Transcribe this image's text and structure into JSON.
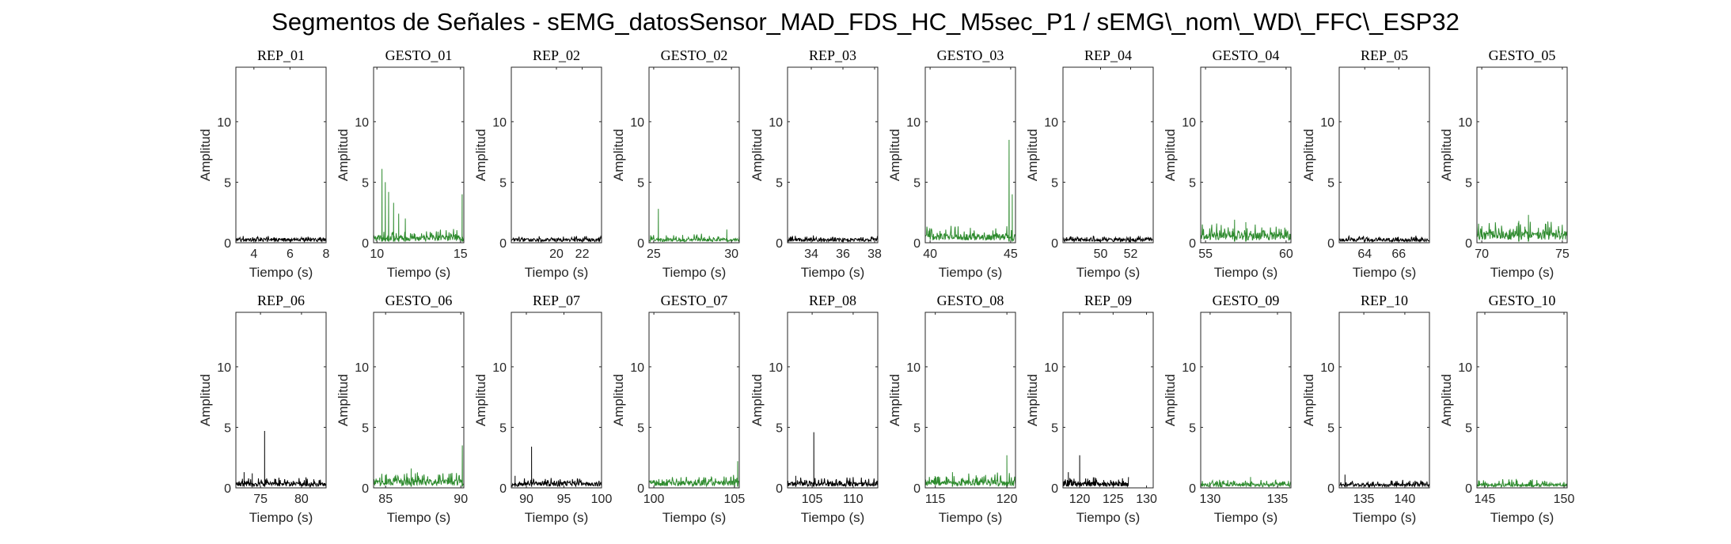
{
  "figure": {
    "title": "Segmentos de Señales - sEMG_datosSensor_MAD_FDS_HC_M5sec_P1 / sEMG\\_nom\\_WD\\_FFC\\_ESP32"
  },
  "colors": {
    "rep": "#000000",
    "gesto": "#2e8b2e",
    "axis": "#262626"
  },
  "chart_data": [
    {
      "type": "line",
      "title": "REP_01",
      "xlabel": "Tiempo (s)",
      "ylabel": "Amplitud",
      "xlim": [
        3,
        8
      ],
      "ylim": [
        0,
        14.5
      ],
      "xticks": [
        4,
        6,
        8
      ],
      "yticks": [
        0,
        5,
        10
      ],
      "color": "black",
      "baseline": 0.3,
      "noise": 0.25,
      "spikes": []
    },
    {
      "type": "line",
      "title": "GESTO_01",
      "xlabel": "Tiempo (s)",
      "ylabel": "Amplitud",
      "xlim": [
        9.8,
        15.2
      ],
      "ylim": [
        0,
        14.5
      ],
      "xticks": [
        10,
        15
      ],
      "yticks": [
        0,
        5,
        10
      ],
      "color": "green",
      "baseline": 0.5,
      "noise": 0.7,
      "spikes": [
        [
          10.3,
          6.1
        ],
        [
          10.5,
          5.0
        ],
        [
          10.7,
          4.2
        ],
        [
          11.0,
          3.3
        ],
        [
          11.3,
          2.4
        ],
        [
          11.7,
          2.0
        ],
        [
          15.1,
          4.0
        ]
      ]
    },
    {
      "type": "line",
      "title": "REP_02",
      "xlabel": "Tiempo (s)",
      "ylabel": "Amplitud",
      "xlim": [
        16.5,
        23.5
      ],
      "ylim": [
        0,
        14.5
      ],
      "xticks": [
        20,
        22
      ],
      "yticks": [
        0,
        5,
        10
      ],
      "color": "black",
      "baseline": 0.3,
      "noise": 0.25,
      "spikes": []
    },
    {
      "type": "line",
      "title": "GESTO_02",
      "xlabel": "Tiempo (s)",
      "ylabel": "Amplitud",
      "xlim": [
        24.7,
        30.5
      ],
      "ylim": [
        0,
        14.5
      ],
      "xticks": [
        25,
        30
      ],
      "yticks": [
        0,
        5,
        10
      ],
      "color": "green",
      "baseline": 0.3,
      "noise": 0.4,
      "spikes": [
        [
          25.3,
          2.8
        ],
        [
          29.7,
          1.1
        ]
      ]
    },
    {
      "type": "line",
      "title": "REP_03",
      "xlabel": "Tiempo (s)",
      "ylabel": "Amplitud",
      "xlim": [
        32.5,
        38.2
      ],
      "ylim": [
        0,
        14.5
      ],
      "xticks": [
        34,
        36,
        38
      ],
      "yticks": [
        0,
        5,
        10
      ],
      "color": "black",
      "baseline": 0.3,
      "noise": 0.25,
      "spikes": []
    },
    {
      "type": "line",
      "title": "GESTO_03",
      "xlabel": "Tiempo (s)",
      "ylabel": "Amplitud",
      "xlim": [
        39.7,
        45.3
      ],
      "ylim": [
        0,
        14.5
      ],
      "xticks": [
        40,
        45
      ],
      "yticks": [
        0,
        5,
        10
      ],
      "color": "green",
      "baseline": 0.6,
      "noise": 0.8,
      "spikes": [
        [
          44.9,
          8.5
        ],
        [
          45.1,
          4.0
        ]
      ]
    },
    {
      "type": "line",
      "title": "REP_04",
      "xlabel": "Tiempo (s)",
      "ylabel": "Amplitud",
      "xlim": [
        47.5,
        53.5
      ],
      "ylim": [
        0,
        14.5
      ],
      "xticks": [
        50,
        52
      ],
      "yticks": [
        0,
        5,
        10
      ],
      "color": "black",
      "baseline": 0.3,
      "noise": 0.25,
      "spikes": []
    },
    {
      "type": "line",
      "title": "GESTO_04",
      "xlabel": "Tiempo (s)",
      "ylabel": "Amplitud",
      "xlim": [
        54.7,
        60.3
      ],
      "ylim": [
        0,
        14.5
      ],
      "xticks": [
        55,
        60
      ],
      "yticks": [
        0,
        5,
        10
      ],
      "color": "green",
      "baseline": 0.7,
      "noise": 0.9,
      "spikes": [
        [
          56.8,
          1.9
        ],
        [
          57.5,
          1.7
        ]
      ]
    },
    {
      "type": "line",
      "title": "REP_05",
      "xlabel": "Tiempo (s)",
      "ylabel": "Amplitud",
      "xlim": [
        62.5,
        67.8
      ],
      "ylim": [
        0,
        14.5
      ],
      "xticks": [
        64,
        66
      ],
      "yticks": [
        0,
        5,
        10
      ],
      "color": "black",
      "baseline": 0.3,
      "noise": 0.25,
      "spikes": []
    },
    {
      "type": "line",
      "title": "GESTO_05",
      "xlabel": "Tiempo (s)",
      "ylabel": "Amplitud",
      "xlim": [
        69.7,
        75.3
      ],
      "ylim": [
        0,
        14.5
      ],
      "xticks": [
        70,
        75
      ],
      "yticks": [
        0,
        5,
        10
      ],
      "color": "green",
      "baseline": 0.8,
      "noise": 0.9,
      "spikes": [
        [
          72.9,
          2.3
        ],
        [
          72.3,
          1.8
        ]
      ]
    },
    {
      "type": "line",
      "title": "REP_06",
      "xlabel": "Tiempo (s)",
      "ylabel": "Amplitud",
      "xlim": [
        72,
        83
      ],
      "ylim": [
        0,
        14.5
      ],
      "xticks": [
        75,
        80
      ],
      "yticks": [
        0,
        5,
        10
      ],
      "color": "black",
      "baseline": 0.4,
      "noise": 0.5,
      "spikes": [
        [
          75.5,
          4.7
        ],
        [
          73.0,
          1.3
        ],
        [
          74.0,
          1.2
        ]
      ]
    },
    {
      "type": "line",
      "title": "GESTO_06",
      "xlabel": "Tiempo (s)",
      "ylabel": "Amplitud",
      "xlim": [
        84.2,
        90.2
      ],
      "ylim": [
        0,
        14.5
      ],
      "xticks": [
        85,
        90
      ],
      "yticks": [
        0,
        5,
        10
      ],
      "color": "green",
      "baseline": 0.6,
      "noise": 0.7,
      "spikes": [
        [
          86.7,
          1.6
        ],
        [
          90.1,
          3.5
        ]
      ]
    },
    {
      "type": "line",
      "title": "REP_07",
      "xlabel": "Tiempo (s)",
      "ylabel": "Amplitud",
      "xlim": [
        88,
        100
      ],
      "ylim": [
        0,
        14.5
      ],
      "xticks": [
        90,
        95,
        100
      ],
      "yticks": [
        0,
        5,
        10
      ],
      "color": "black",
      "baseline": 0.4,
      "noise": 0.45,
      "spikes": [
        [
          90.7,
          3.4
        ],
        [
          88.5,
          1.0
        ]
      ]
    },
    {
      "type": "line",
      "title": "GESTO_07",
      "xlabel": "Tiempo (s)",
      "ylabel": "Amplitud",
      "xlim": [
        99.7,
        105.3
      ],
      "ylim": [
        0,
        14.5
      ],
      "xticks": [
        100,
        105
      ],
      "yticks": [
        0,
        5,
        10
      ],
      "color": "green",
      "baseline": 0.5,
      "noise": 0.5,
      "spikes": [
        [
          105.2,
          2.2
        ]
      ]
    },
    {
      "type": "line",
      "title": "REP_08",
      "xlabel": "Tiempo (s)",
      "ylabel": "Amplitud",
      "xlim": [
        102,
        113
      ],
      "ylim": [
        0,
        14.5
      ],
      "xticks": [
        105,
        110
      ],
      "yticks": [
        0,
        5,
        10
      ],
      "color": "black",
      "baseline": 0.4,
      "noise": 0.5,
      "spikes": [
        [
          105.2,
          4.6
        ],
        [
          103.0,
          1.0
        ]
      ]
    },
    {
      "type": "line",
      "title": "GESTO_08",
      "xlabel": "Tiempo (s)",
      "ylabel": "Amplitud",
      "xlim": [
        114.3,
        120.6
      ],
      "ylim": [
        0,
        14.5
      ],
      "xticks": [
        115,
        120
      ],
      "yticks": [
        0,
        5,
        10
      ],
      "color": "green",
      "baseline": 0.5,
      "noise": 0.7,
      "spikes": [
        [
          120.0,
          2.7
        ],
        [
          116.2,
          1.3
        ]
      ]
    },
    {
      "type": "line",
      "title": "REP_09",
      "xlabel": "Tiempo (s)",
      "ylabel": "Amplitud",
      "xlim": [
        117.5,
        131
      ],
      "ylim": [
        0,
        14.5
      ],
      "xticks": [
        120,
        125,
        130
      ],
      "yticks": [
        0,
        5,
        10
      ],
      "color": "black",
      "baseline": 0.4,
      "noise": 0.5,
      "spikes": [
        [
          120.0,
          2.7
        ],
        [
          118.3,
          1.3
        ]
      ],
      "xend": 127.3
    },
    {
      "type": "line",
      "title": "GESTO_09",
      "xlabel": "Tiempo (s)",
      "ylabel": "Amplitud",
      "xlim": [
        129.3,
        136
      ],
      "ylim": [
        0,
        14.5
      ],
      "xticks": [
        130,
        135
      ],
      "yticks": [
        0,
        5,
        10
      ],
      "color": "green",
      "baseline": 0.3,
      "noise": 0.4,
      "spikes": [
        [
          133.0,
          0.9
        ]
      ]
    },
    {
      "type": "line",
      "title": "REP_10",
      "xlabel": "Tiempo (s)",
      "ylabel": "Amplitud",
      "xlim": [
        132,
        143
      ],
      "ylim": [
        0,
        14.5
      ],
      "xticks": [
        135,
        140
      ],
      "yticks": [
        0,
        5,
        10
      ],
      "color": "black",
      "baseline": 0.3,
      "noise": 0.4,
      "spikes": [
        [
          132.7,
          1.1
        ]
      ]
    },
    {
      "type": "line",
      "title": "GESTO_10",
      "xlabel": "Tiempo (s)",
      "ylabel": "Amplitud",
      "xlim": [
        144.5,
        150.2
      ],
      "ylim": [
        0,
        14.5
      ],
      "xticks": [
        145,
        150
      ],
      "yticks": [
        0,
        5,
        10
      ],
      "color": "green",
      "baseline": 0.3,
      "noise": 0.4,
      "spikes": [
        [
          148.0,
          0.7
        ]
      ]
    }
  ]
}
